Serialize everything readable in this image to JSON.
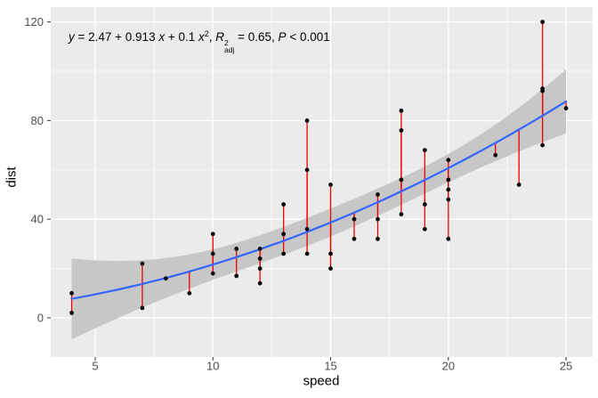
{
  "figure": {
    "background": "#FFFFFF",
    "panel_background": "#EBEBEB",
    "annotation": {
      "y_var": "y",
      "seg1": " = 2.47 + 0.913 ",
      "x_var1": "x",
      "seg2": " + 0.1 ",
      "x_var2": "x",
      "x_sup": "2",
      "seg3": ", ",
      "r_var": "R",
      "r_sup": "2",
      "r_sub": "adj",
      "seg4": " = 0.65, ",
      "p_var": "P",
      "seg5": " < 0.001"
    }
  },
  "chart_data": {
    "type": "scatter",
    "title": "",
    "xlabel": "speed",
    "ylabel": "dist",
    "x_ticks": [
      5,
      10,
      15,
      20,
      25
    ],
    "y_ticks": [
      0,
      40,
      80,
      120
    ],
    "x_minor_gridlines": [
      7.5,
      12.5,
      17.5,
      22.5
    ],
    "y_minor_gridlines": [
      20,
      60,
      100
    ],
    "xlim": [
      3.11,
      26.13
    ],
    "ylim": [
      -15.9,
      126.0
    ],
    "grid": "on",
    "legend": "none",
    "points_xy": [
      [
        4,
        2
      ],
      [
        4,
        10
      ],
      [
        7,
        4
      ],
      [
        7,
        22
      ],
      [
        8,
        16
      ],
      [
        9,
        10
      ],
      [
        10,
        18
      ],
      [
        10,
        26
      ],
      [
        10,
        34
      ],
      [
        11,
        17
      ],
      [
        11,
        28
      ],
      [
        12,
        14
      ],
      [
        12,
        20
      ],
      [
        12,
        24
      ],
      [
        12,
        28
      ],
      [
        13,
        26
      ],
      [
        13,
        34
      ],
      [
        13,
        34
      ],
      [
        13,
        46
      ],
      [
        14,
        26
      ],
      [
        14,
        36
      ],
      [
        14,
        60
      ],
      [
        14,
        80
      ],
      [
        15,
        20
      ],
      [
        15,
        26
      ],
      [
        15,
        54
      ],
      [
        16,
        32
      ],
      [
        16,
        40
      ],
      [
        17,
        32
      ],
      [
        17,
        40
      ],
      [
        17,
        50
      ],
      [
        18,
        42
      ],
      [
        18,
        56
      ],
      [
        18,
        76
      ],
      [
        18,
        84
      ],
      [
        19,
        36
      ],
      [
        19,
        46
      ],
      [
        19,
        68
      ],
      [
        20,
        32
      ],
      [
        20,
        48
      ],
      [
        20,
        52
      ],
      [
        20,
        56
      ],
      [
        20,
        64
      ],
      [
        22,
        66
      ],
      [
        23,
        54
      ],
      [
        24,
        70
      ],
      [
        24,
        92
      ],
      [
        24,
        93
      ],
      [
        24,
        120
      ],
      [
        25,
        85
      ]
    ],
    "fit": {
      "model": "quadratic",
      "intercept": 2.47,
      "coef_x": 0.913,
      "coef_x2": 0.1,
      "r2_adj": 0.65,
      "p_value_display": "P < 0.001",
      "ci_level": 0.95,
      "t_critical": 2.0117,
      "x_range": [
        4,
        25
      ]
    },
    "colors": {
      "point": "#0A0A0A",
      "residual_segment": "#EE0000",
      "fit_line": "#3366FF",
      "ci_ribbon": "#C7C7C7",
      "grid": "#FFFFFF",
      "tick_label": "#4D4D4D",
      "tick_mark": "#333333",
      "axis_title": "#000000"
    }
  }
}
